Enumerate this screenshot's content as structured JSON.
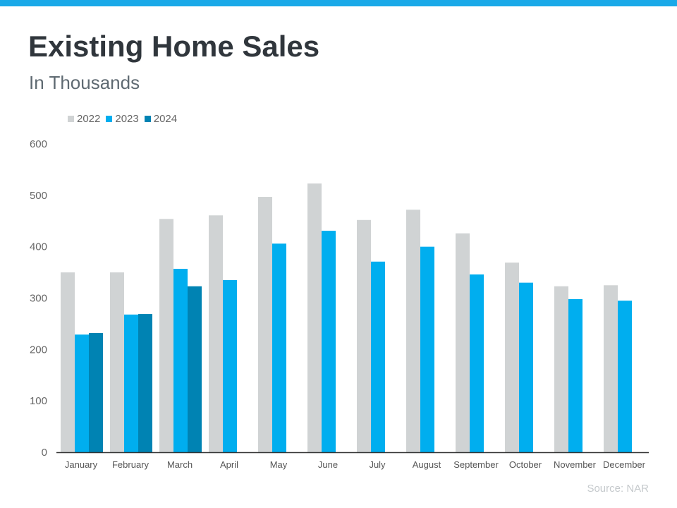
{
  "title": "Existing Home Sales",
  "subtitle": "In Thousands",
  "source": "Source: NAR",
  "colors": {
    "2022": "#d0d3d4",
    "2023": "#00aeef",
    "2024": "#0083b3",
    "accent": "#1aa9e8"
  },
  "chart_data": {
    "type": "bar",
    "title": "Existing Home Sales",
    "subtitle": "In Thousands",
    "xlabel": "",
    "ylabel": "",
    "ylim": [
      0,
      600
    ],
    "yticks": [
      "0",
      "100",
      "200",
      "300",
      "400",
      "500",
      "600"
    ],
    "legend_position": "top-left",
    "categories": [
      "January",
      "February",
      "March",
      "April",
      "May",
      "June",
      "July",
      "August",
      "September",
      "October",
      "November",
      "December"
    ],
    "series": [
      {
        "name": "2022",
        "values": [
          350,
          350,
          454,
          461,
          497,
          523,
          452,
          472,
          426,
          369,
          323,
          325
        ]
      },
      {
        "name": "2023",
        "values": [
          229,
          268,
          357,
          335,
          406,
          431,
          371,
          400,
          346,
          330,
          298,
          295
        ]
      },
      {
        "name": "2024",
        "values": [
          232,
          269,
          323,
          null,
          null,
          null,
          null,
          null,
          null,
          null,
          null,
          null
        ]
      }
    ]
  }
}
